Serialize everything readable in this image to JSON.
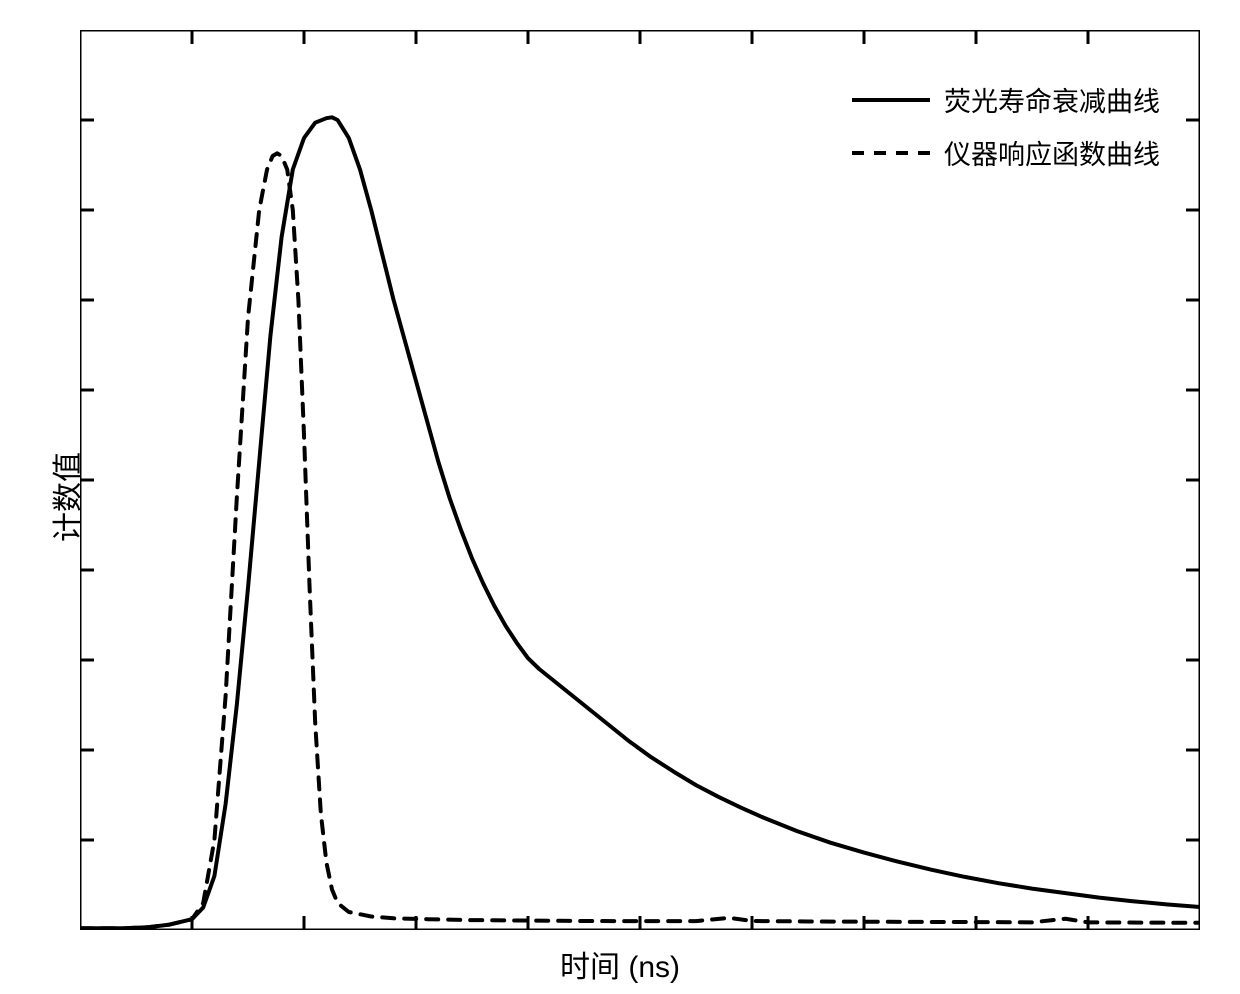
{
  "chart": {
    "type": "line",
    "xlabel": "时间 (ns)",
    "ylabel": "计数值",
    "xlim": [
      0,
      100
    ],
    "ylim": [
      0,
      100
    ],
    "background_color": "#ffffff",
    "border_color": "#000000",
    "border_width": 3,
    "tick_count_x": 10,
    "tick_count_y": 10,
    "tick_length": 14,
    "tick_width": 3,
    "series": [
      {
        "id": "decay",
        "label": "荧光寿命衰减曲线",
        "color": "#000000",
        "line_width": 4,
        "dash": "none",
        "points": [
          [
            0,
            0.2
          ],
          [
            4,
            0.2
          ],
          [
            6,
            0.3
          ],
          [
            8,
            0.6
          ],
          [
            10,
            1.2
          ],
          [
            11,
            2.5
          ],
          [
            12,
            6
          ],
          [
            13,
            14
          ],
          [
            14,
            25
          ],
          [
            15,
            38
          ],
          [
            16,
            52
          ],
          [
            17,
            66
          ],
          [
            18,
            77
          ],
          [
            19,
            84.5
          ],
          [
            20,
            88
          ],
          [
            21,
            89.7
          ],
          [
            22,
            90.2
          ],
          [
            22.5,
            90.3
          ],
          [
            23,
            90
          ],
          [
            24,
            88
          ],
          [
            25,
            84.5
          ],
          [
            26,
            80
          ],
          [
            27,
            75
          ],
          [
            28,
            70
          ],
          [
            29,
            65.5
          ],
          [
            30,
            61
          ],
          [
            31,
            56.5
          ],
          [
            32,
            52
          ],
          [
            33,
            48
          ],
          [
            34,
            44.5
          ],
          [
            35,
            41.3
          ],
          [
            36,
            38.5
          ],
          [
            37,
            36
          ],
          [
            38,
            33.8
          ],
          [
            39,
            31.9
          ],
          [
            40,
            30.2
          ],
          [
            41,
            29
          ],
          [
            42,
            28
          ],
          [
            43,
            27
          ],
          [
            45,
            25
          ],
          [
            47,
            23
          ],
          [
            49,
            21
          ],
          [
            51,
            19.2
          ],
          [
            53,
            17.6
          ],
          [
            55,
            16.1
          ],
          [
            57,
            14.8
          ],
          [
            59,
            13.6
          ],
          [
            61,
            12.5
          ],
          [
            64,
            11
          ],
          [
            67,
            9.7
          ],
          [
            70,
            8.6
          ],
          [
            73,
            7.6
          ],
          [
            76,
            6.7
          ],
          [
            79,
            5.9
          ],
          [
            82,
            5.2
          ],
          [
            85,
            4.6
          ],
          [
            88,
            4.1
          ],
          [
            91,
            3.6
          ],
          [
            94,
            3.2
          ],
          [
            97,
            2.85
          ],
          [
            100,
            2.55
          ]
        ]
      },
      {
        "id": "irf",
        "label": "仪器响应函数曲线",
        "color": "#000000",
        "line_width": 4,
        "dash": "12,10",
        "points": [
          [
            0,
            0.2
          ],
          [
            4,
            0.2
          ],
          [
            6,
            0.3
          ],
          [
            8,
            0.6
          ],
          [
            10,
            1.2
          ],
          [
            11,
            3
          ],
          [
            12,
            10
          ],
          [
            13,
            26
          ],
          [
            14,
            48
          ],
          [
            15,
            68
          ],
          [
            16,
            80
          ],
          [
            16.7,
            84.5
          ],
          [
            17.2,
            86
          ],
          [
            17.6,
            86.3
          ],
          [
            18.0,
            86
          ],
          [
            18.5,
            84.5
          ],
          [
            19,
            80
          ],
          [
            19.5,
            70
          ],
          [
            20,
            55
          ],
          [
            20.5,
            38
          ],
          [
            21,
            23
          ],
          [
            21.5,
            13
          ],
          [
            22,
            7.5
          ],
          [
            22.5,
            4.5
          ],
          [
            23,
            3
          ],
          [
            24,
            2
          ],
          [
            26,
            1.5
          ],
          [
            28,
            1.3
          ],
          [
            31,
            1.2
          ],
          [
            35,
            1.1
          ],
          [
            40,
            1.05
          ],
          [
            45,
            1.0
          ],
          [
            50,
            0.98
          ],
          [
            55,
            0.99
          ],
          [
            58,
            1.35
          ],
          [
            60,
            1.0
          ],
          [
            65,
            0.95
          ],
          [
            70,
            0.92
          ],
          [
            75,
            0.9
          ],
          [
            80,
            0.88
          ],
          [
            85,
            0.85
          ],
          [
            88,
            1.25
          ],
          [
            90,
            0.85
          ],
          [
            95,
            0.82
          ],
          [
            100,
            0.8
          ]
        ]
      }
    ],
    "legend": {
      "position": "top-right",
      "font_size": 27
    }
  }
}
